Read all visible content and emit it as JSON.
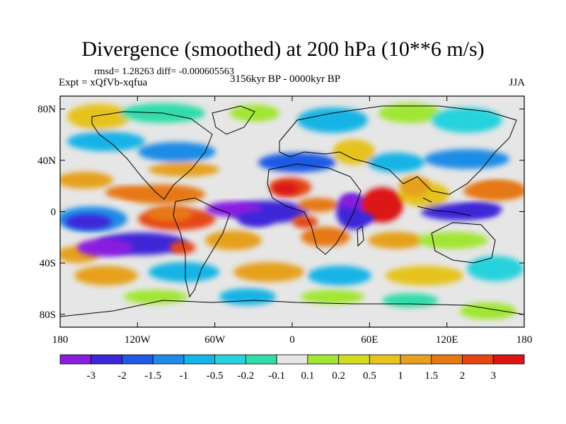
{
  "chart_data": {
    "type": "heatmap",
    "title": "Divergence (smoothed) at 200 hPa (10**6 m/s)",
    "stats": "rmsd= 1.28263 diff= -0.000605563",
    "experiment": "Expt = xQfVb-xqfua",
    "period": "3156kyr BP - 0000kyr BP",
    "season": "JJA",
    "x_ticks": [
      "180",
      "120W",
      "60W",
      "0",
      "60E",
      "120E",
      "180"
    ],
    "x_tick_values": [
      -180,
      -120,
      -60,
      0,
      60,
      120,
      180
    ],
    "y_ticks": [
      "80N",
      "40N",
      "0",
      "40S",
      "80S"
    ],
    "y_tick_values": [
      80,
      40,
      0,
      -40,
      -80
    ],
    "xlim": [
      -180,
      180
    ],
    "ylim": [
      -90,
      90
    ],
    "colorbar": {
      "colors": [
        "#8a1ee0",
        "#3c28d8",
        "#1e5ae6",
        "#1e8ce6",
        "#14b4e6",
        "#28d2dc",
        "#32dcaa",
        "#e6e6e6",
        "#a0e632",
        "#d2dc1e",
        "#e6c31e",
        "#e6a01e",
        "#e67814",
        "#e64614",
        "#dc1414"
      ],
      "levels": [
        "-3",
        "-2",
        "-1.5",
        "-1",
        "-0.5",
        "-0.2",
        "-0.1",
        "0.1",
        "0.2",
        "0.5",
        "1",
        "1.5",
        "2",
        "3"
      ]
    },
    "features": [
      {
        "lon": -145,
        "lat": -28,
        "rx": 22,
        "ry": 7,
        "level": 0
      },
      {
        "lon": -158,
        "lat": -8,
        "rx": 18,
        "ry": 6,
        "level": 1
      },
      {
        "lon": -45,
        "lat": 2,
        "rx": 22,
        "ry": 6,
        "level": 0
      },
      {
        "lon": -28,
        "lat": -6,
        "rx": 14,
        "ry": 6,
        "level": 1
      },
      {
        "lon": 52,
        "lat": -5,
        "rx": 12,
        "ry": 5,
        "level": 1
      },
      {
        "lon": 45,
        "lat": 8,
        "rx": 8,
        "ry": 6,
        "level": 0
      },
      {
        "lon": 145,
        "lat": 2,
        "rx": 18,
        "ry": 5,
        "level": 1
      },
      {
        "lon": 70,
        "lat": 5,
        "rx": 12,
        "ry": 8,
        "level": 14
      },
      {
        "lon": -5,
        "lat": 18,
        "rx": 10,
        "ry": 5,
        "level": 14
      },
      {
        "lon": -95,
        "lat": -2,
        "rx": 18,
        "ry": 6,
        "level": 12
      },
      {
        "lon": -130,
        "lat": 15,
        "rx": 15,
        "ry": 5,
        "level": 12
      },
      {
        "lon": 10,
        "lat": -8,
        "rx": 10,
        "ry": 5,
        "level": 13
      },
      {
        "lon": 160,
        "lat": 18,
        "rx": 18,
        "ry": 6,
        "level": 12
      },
      {
        "lon": -85,
        "lat": -28,
        "rx": 10,
        "ry": 5,
        "level": 13
      },
      {
        "lon": 95,
        "lat": 20,
        "rx": 12,
        "ry": 8,
        "level": 11
      }
    ]
  }
}
